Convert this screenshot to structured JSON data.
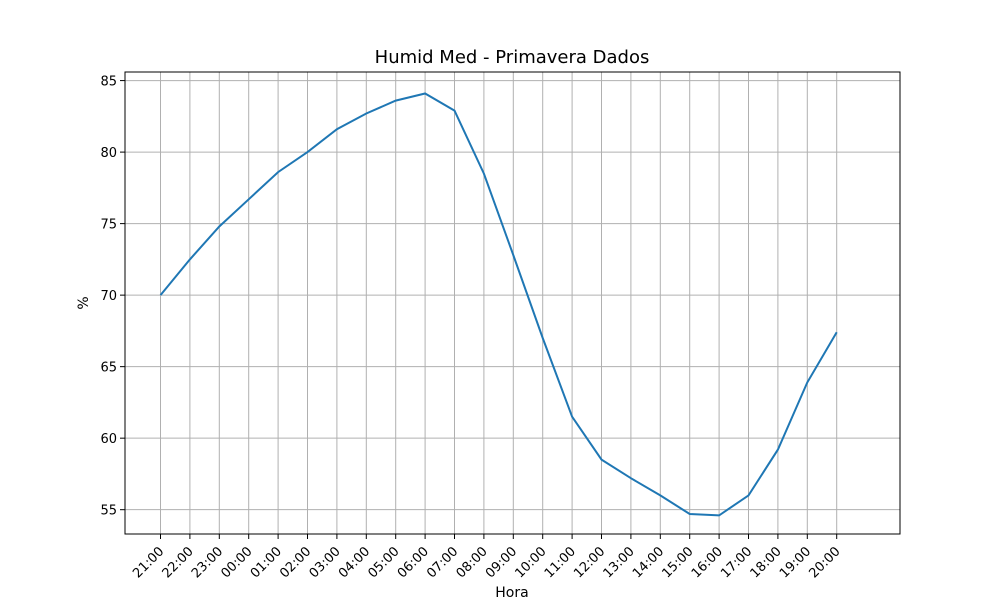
{
  "chart_data": {
    "type": "line",
    "title": "Humid Med - Primavera Dados",
    "xlabel": "Hora",
    "ylabel": "%",
    "categories": [
      "21:00",
      "22:00",
      "23:00",
      "00:00",
      "01:00",
      "02:00",
      "03:00",
      "04:00",
      "05:00",
      "06:00",
      "07:00",
      "08:00",
      "09:00",
      "10:00",
      "11:00",
      "12:00",
      "13:00",
      "14:00",
      "15:00",
      "16:00",
      "17:00",
      "18:00",
      "19:00",
      "20:00"
    ],
    "ylim": [
      53.3,
      85.6
    ],
    "yticks": [
      55,
      60,
      65,
      70,
      75,
      80,
      85
    ],
    "grid": true,
    "series": [
      {
        "name": "",
        "color": "#1f77b4",
        "values": [
          70.0,
          72.5,
          74.8,
          76.7,
          78.6,
          80.0,
          81.6,
          82.7,
          83.6,
          84.1,
          82.9,
          78.5,
          72.8,
          67.0,
          61.5,
          58.5,
          57.2,
          56.0,
          54.7,
          54.6,
          56.0,
          59.2,
          63.9,
          67.4
        ]
      }
    ]
  }
}
